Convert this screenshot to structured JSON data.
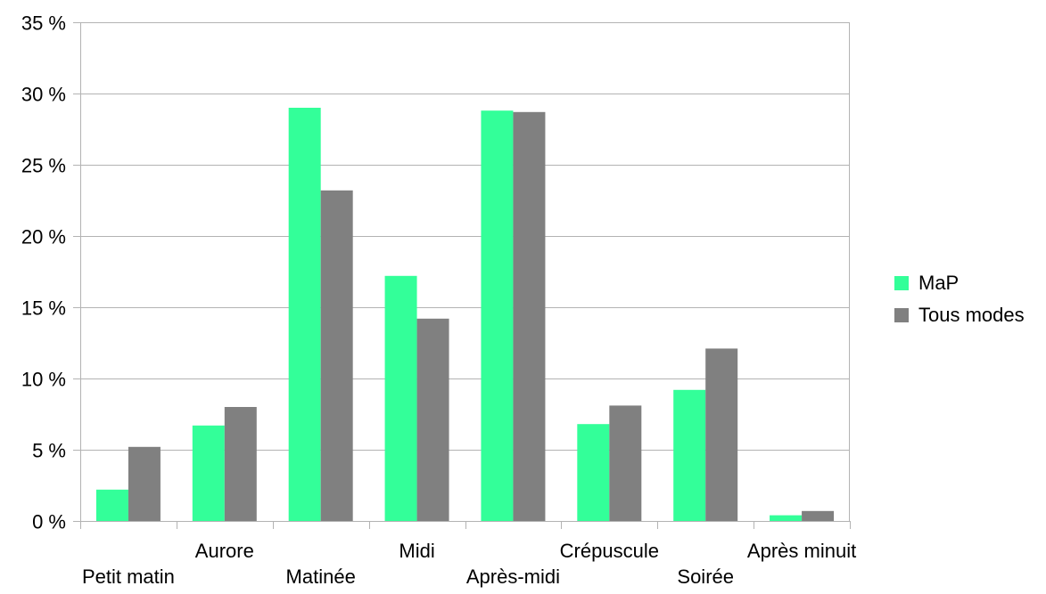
{
  "chart_data": {
    "type": "bar",
    "title": "",
    "xlabel": "",
    "ylabel": "",
    "categories": [
      "Petit matin",
      "Aurore",
      "Matinée",
      "Midi",
      "Après-midi",
      "Crépuscule",
      "Soirée",
      "Après minuit"
    ],
    "series": [
      {
        "name": "MaP",
        "color": "#33ff99",
        "values": [
          2.2,
          6.7,
          29.0,
          17.2,
          28.8,
          6.8,
          9.2,
          0.4
        ]
      },
      {
        "name": "Tous modes",
        "color": "#808080",
        "values": [
          5.2,
          8.0,
          23.2,
          14.2,
          28.7,
          8.1,
          12.1,
          0.7
        ]
      }
    ],
    "ylim": [
      0,
      35
    ],
    "yticks": [
      0,
      5,
      10,
      15,
      20,
      25,
      30,
      35
    ],
    "ytick_labels": [
      "0 %",
      "5 %",
      "10 %",
      "15 %",
      "20 %",
      "25 %",
      "30 %",
      "35 %"
    ],
    "grid": "horizontal",
    "legend_position": "right",
    "colors": {
      "grid": "#b3b3b3",
      "axis": "#b3b3b3"
    }
  }
}
